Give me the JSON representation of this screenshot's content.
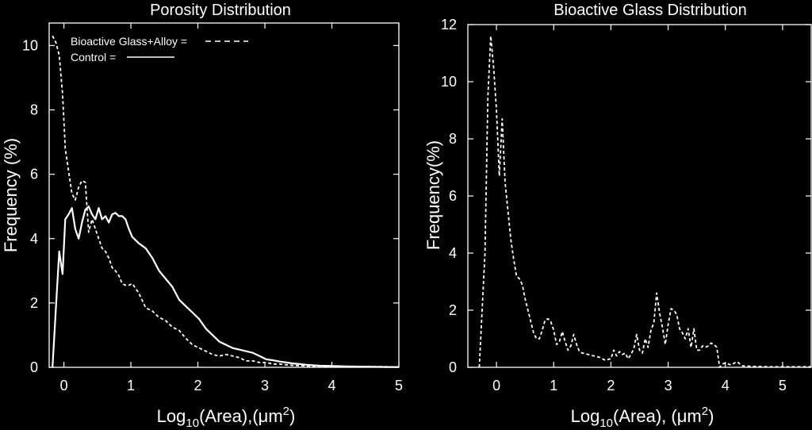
{
  "chart_data": [
    {
      "type": "line",
      "title": "Porosity Distribution",
      "xlabel": {
        "base": "Log",
        "sub": "10",
        "mid": "(Area),(",
        "mu": "μ",
        "m": "m",
        "sup": "2",
        "close": ")"
      },
      "ylabel": "Frequency (%)",
      "xlim": [
        -0.22,
        5
      ],
      "ylim": [
        0,
        10.7
      ],
      "xticks": [
        "0",
        "1",
        "2",
        "3",
        "4",
        "5"
      ],
      "xtick_values": [
        0,
        1,
        2,
        3,
        4,
        5
      ],
      "yticks": [
        "0",
        "2",
        "4",
        "6",
        "8",
        "10"
      ],
      "ytick_values": [
        0,
        2,
        4,
        6,
        8,
        10
      ],
      "grid": false,
      "legend": "top-left",
      "legend_entries": [
        "Bioactive Glass+Alloy =",
        "Control ="
      ],
      "series": [
        {
          "name": "Bioactive Glass+Alloy",
          "style": "dashed",
          "x": [
            -0.17,
            -0.12,
            -0.07,
            -0.02,
            0.02,
            0.07,
            0.12,
            0.17,
            0.22,
            0.27,
            0.32,
            0.37,
            0.42,
            0.47,
            0.52,
            0.57,
            0.62,
            0.67,
            0.72,
            0.77,
            0.82,
            0.87,
            0.92,
            0.97,
            1.02,
            1.12,
            1.22,
            1.32,
            1.42,
            1.52,
            1.62,
            1.72,
            1.82,
            1.92,
            2.02,
            2.12,
            2.22,
            2.32,
            2.42,
            2.52,
            2.62,
            2.72,
            2.82,
            2.92,
            3.02,
            3.12,
            3.22,
            3.32,
            3.42,
            3.52,
            3.62,
            3.82,
            4.02,
            4.22,
            4.52,
            4.82,
            5.0
          ],
          "y": [
            10.3,
            10.1,
            9.7,
            8.5,
            6.8,
            6.1,
            5.4,
            5.2,
            5.6,
            5.8,
            5.75,
            4.2,
            4.6,
            4.3,
            4.0,
            3.7,
            3.6,
            3.4,
            3.1,
            3.0,
            2.85,
            2.6,
            2.55,
            2.55,
            2.6,
            2.3,
            1.85,
            1.75,
            1.55,
            1.45,
            1.25,
            1.15,
            0.9,
            0.7,
            0.6,
            0.5,
            0.4,
            0.35,
            0.4,
            0.35,
            0.3,
            0.2,
            0.2,
            0.15,
            0.15,
            0.1,
            0.1,
            0.08,
            0.06,
            0.05,
            0.04,
            0.03,
            0.02,
            0.02,
            0.02,
            0.02,
            0.01
          ]
        },
        {
          "name": "Control",
          "style": "solid",
          "x": [
            -0.17,
            -0.12,
            -0.07,
            -0.02,
            0.02,
            0.07,
            0.12,
            0.17,
            0.22,
            0.27,
            0.32,
            0.37,
            0.42,
            0.47,
            0.52,
            0.57,
            0.62,
            0.67,
            0.72,
            0.77,
            0.82,
            0.87,
            0.92,
            0.97,
            1.02,
            1.12,
            1.22,
            1.32,
            1.42,
            1.52,
            1.62,
            1.72,
            1.82,
            1.92,
            2.02,
            2.12,
            2.22,
            2.32,
            2.42,
            2.52,
            2.62,
            2.72,
            2.82,
            2.92,
            3.02,
            3.12,
            3.22,
            3.32,
            3.42,
            3.52,
            3.62,
            3.82,
            4.02,
            4.22,
            4.52,
            4.82,
            5.0
          ],
          "y": [
            0.0,
            1.8,
            3.6,
            2.9,
            4.6,
            4.75,
            4.95,
            4.3,
            4.0,
            4.5,
            4.9,
            5.0,
            4.75,
            4.6,
            4.95,
            4.6,
            4.7,
            4.5,
            4.75,
            4.8,
            4.7,
            4.7,
            4.6,
            4.3,
            4.05,
            3.85,
            3.7,
            3.4,
            3.0,
            2.75,
            2.5,
            2.1,
            1.9,
            1.7,
            1.5,
            1.2,
            1.0,
            0.8,
            0.7,
            0.6,
            0.55,
            0.5,
            0.45,
            0.35,
            0.25,
            0.22,
            0.18,
            0.15,
            0.12,
            0.1,
            0.08,
            0.05,
            0.04,
            0.03,
            0.02,
            0.01,
            0.01
          ]
        }
      ]
    },
    {
      "type": "line",
      "title": "Bioactive Glass Distribution",
      "xlabel": {
        "base": "Log",
        "sub": "10",
        "mid": "(Area), (",
        "mu": "μ",
        "m": "m",
        "sup": "2",
        "close": ")"
      },
      "ylabel": "Frequency(%)",
      "xlim": [
        -0.5,
        5.5
      ],
      "ylim": [
        0,
        12
      ],
      "xticks": [
        "0",
        "1",
        "2",
        "3",
        "4",
        "5"
      ],
      "xtick_values": [
        0,
        1,
        2,
        3,
        4,
        5
      ],
      "yticks": [
        "0",
        "2",
        "4",
        "6",
        "8",
        "10",
        "12"
      ],
      "ytick_values": [
        0,
        2,
        4,
        6,
        8,
        10,
        12
      ],
      "grid": false,
      "series": [
        {
          "style": "dashed",
          "x": [
            -0.3,
            -0.2,
            -0.15,
            -0.1,
            -0.05,
            0.0,
            0.05,
            0.1,
            0.15,
            0.2,
            0.25,
            0.3,
            0.35,
            0.4,
            0.45,
            0.5,
            0.55,
            0.6,
            0.65,
            0.7,
            0.75,
            0.8,
            0.85,
            0.9,
            0.95,
            1.0,
            1.05,
            1.1,
            1.15,
            1.2,
            1.25,
            1.3,
            1.35,
            1.4,
            1.45,
            1.5,
            1.6,
            1.7,
            1.8,
            1.9,
            2.0,
            2.05,
            2.1,
            2.15,
            2.2,
            2.25,
            2.3,
            2.35,
            2.4,
            2.45,
            2.5,
            2.55,
            2.6,
            2.65,
            2.7,
            2.75,
            2.8,
            2.85,
            2.9,
            2.95,
            3.0,
            3.05,
            3.1,
            3.15,
            3.2,
            3.25,
            3.3,
            3.35,
            3.4,
            3.45,
            3.5,
            3.55,
            3.6,
            3.65,
            3.7,
            3.75,
            3.8,
            3.85,
            3.9,
            3.95,
            4.0,
            4.1,
            4.2,
            4.3,
            4.5,
            4.8,
            5.2,
            5.5
          ],
          "y": [
            0.0,
            4.0,
            9.5,
            11.6,
            10.5,
            9.0,
            6.7,
            8.7,
            6.5,
            5.5,
            4.5,
            3.8,
            3.2,
            3.1,
            2.9,
            2.4,
            2.0,
            1.6,
            1.2,
            1.0,
            1.0,
            1.3,
            1.65,
            1.7,
            1.6,
            1.3,
            0.8,
            0.9,
            1.25,
            0.9,
            0.6,
            0.75,
            1.15,
            0.8,
            0.55,
            0.5,
            0.45,
            0.4,
            0.35,
            0.25,
            0.3,
            0.6,
            0.4,
            0.55,
            0.45,
            0.5,
            0.3,
            0.45,
            0.65,
            1.15,
            0.6,
            0.5,
            1.0,
            0.7,
            1.3,
            1.55,
            2.6,
            1.9,
            1.4,
            0.8,
            1.5,
            2.05,
            2.0,
            1.85,
            1.35,
            1.2,
            1.0,
            1.35,
            0.7,
            1.35,
            0.6,
            0.6,
            0.75,
            0.7,
            0.75,
            0.85,
            0.8,
            0.7,
            0.0,
            0.12,
            0.15,
            0.08,
            0.2,
            0.05,
            0.03,
            0.02,
            0.02,
            0.02
          ]
        }
      ]
    }
  ]
}
